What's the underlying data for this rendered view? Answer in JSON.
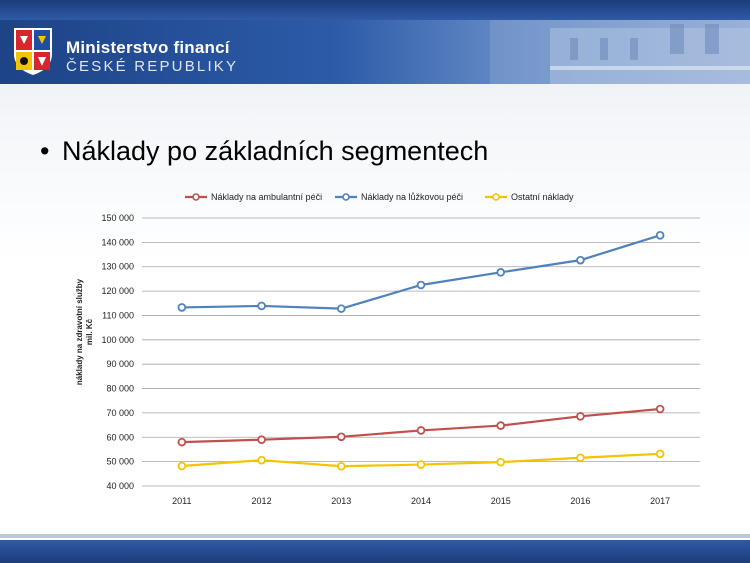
{
  "header": {
    "ministry_name": "Ministerstvo financí",
    "ministry_sub": "ČESKÉ REPUBLIKY"
  },
  "slide": {
    "bullet": "•",
    "title": "Náklady po základních segmentech"
  },
  "colors": {
    "ambulant": "#c0504d",
    "bed": "#4f81bd",
    "other": "#f5c400",
    "grid": "#a6a6a6"
  },
  "chart_data": {
    "type": "line",
    "x": [
      "2011",
      "2012",
      "2013",
      "2014",
      "2015",
      "2016",
      "2017"
    ],
    "ylabel_lines": [
      "náklady na zdravotní služby",
      "mil. Kč"
    ],
    "ylim": [
      40000,
      150000
    ],
    "yticks": [
      40000,
      50000,
      60000,
      70000,
      80000,
      90000,
      100000,
      110000,
      120000,
      130000,
      140000,
      150000
    ],
    "ytick_labels": [
      "40 000",
      "50 000",
      "60 000",
      "70 000",
      "80 000",
      "90 000",
      "100 000",
      "110 000",
      "120 000",
      "130 000",
      "140 000",
      "150 000"
    ],
    "grid": true,
    "legend_position": "top",
    "series": [
      {
        "name": "Náklady na ambulantní péči",
        "color_key": "ambulant",
        "values": [
          58000,
          59000,
          60200,
          62800,
          64800,
          68600,
          71600
        ]
      },
      {
        "name": "Náklady na lůžkovou péči",
        "color_key": "bed",
        "values": [
          113300,
          113900,
          112800,
          122500,
          127700,
          132700,
          142900
        ]
      },
      {
        "name": "Ostatní náklady",
        "color_key": "other",
        "values": [
          48200,
          50600,
          48100,
          48800,
          49800,
          51600,
          53200
        ]
      }
    ]
  }
}
